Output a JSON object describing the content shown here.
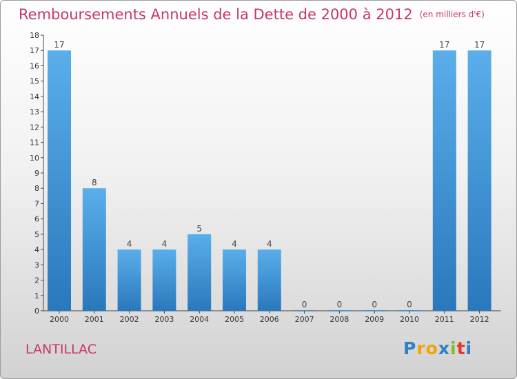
{
  "title": "Remboursements Annuels de la Dette de 2000 à 2012",
  "unit": "(en milliers d'€)",
  "commune": "LANTILLAC",
  "logo": {
    "text": "Proxiti",
    "letters": [
      {
        "ch": "P",
        "color": "#2f7fc8"
      },
      {
        "ch": "r",
        "color": "#f2a300"
      },
      {
        "ch": "o",
        "color": "#f2a300"
      },
      {
        "ch": "x",
        "color": "#2f7fc8"
      },
      {
        "ch": "i",
        "color": "#7cbf2a"
      },
      {
        "ch": "t",
        "color": "#e3362c"
      },
      {
        "ch": "i",
        "color": "#2f7fc8"
      }
    ]
  },
  "colors": {
    "title": "#c8346d",
    "bar_light": "#5aaeea",
    "bar_dark": "#2a78bc"
  },
  "chart_data": {
    "type": "bar",
    "categories": [
      "2000",
      "2001",
      "2002",
      "2003",
      "2004",
      "2005",
      "2006",
      "2007",
      "2008",
      "2009",
      "2010",
      "2011",
      "2012"
    ],
    "values": [
      17,
      8,
      4,
      4,
      5,
      4,
      4,
      0,
      0,
      0,
      0,
      17,
      17
    ],
    "ylim": [
      0,
      18
    ],
    "yticks": [
      0,
      1,
      2,
      3,
      4,
      5,
      6,
      7,
      8,
      9,
      10,
      11,
      12,
      13,
      14,
      15,
      16,
      17,
      18
    ],
    "grid": false,
    "data_labels": true
  }
}
